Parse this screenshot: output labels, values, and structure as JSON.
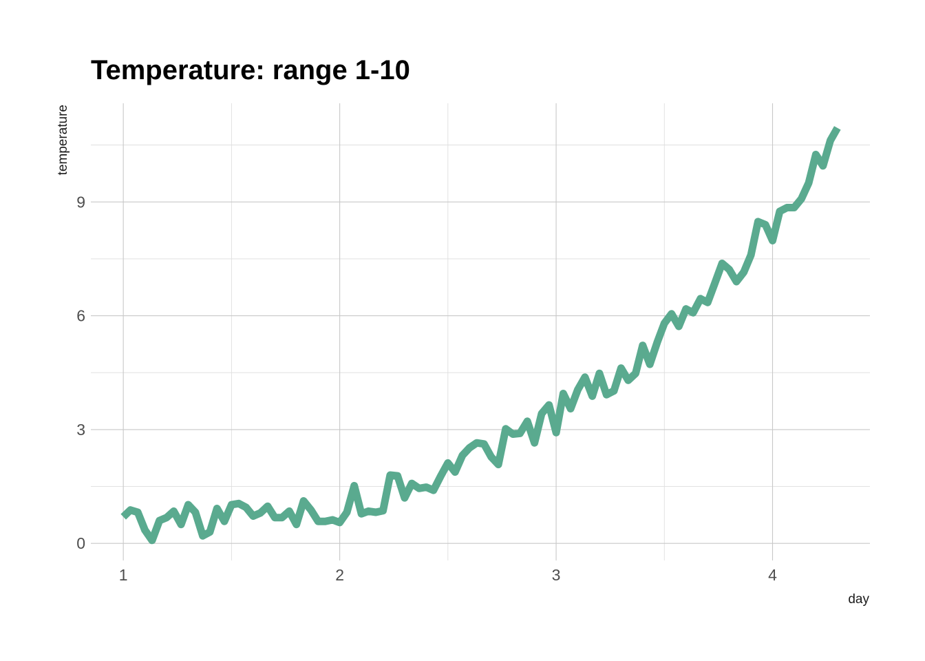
{
  "chart_data": {
    "type": "line",
    "title": "Temperature: range 1-10",
    "xlabel": "day",
    "ylabel": "temperature",
    "xlim": [
      0.85,
      4.45
    ],
    "ylim": [
      -0.45,
      11.6
    ],
    "x_ticks": [
      1,
      2,
      3,
      4
    ],
    "y_ticks": [
      0,
      3,
      6,
      9
    ],
    "x_minor_ticks": [
      1.5,
      2.5,
      3.5
    ],
    "y_minor_ticks": [
      1.5,
      4.5,
      7.5,
      10.5
    ],
    "grid": true,
    "legend": "none",
    "series": [
      {
        "color": "#5aaa8f",
        "x": [
          1.0,
          1.033,
          1.067,
          1.1,
          1.133,
          1.167,
          1.2,
          1.233,
          1.267,
          1.3,
          1.333,
          1.367,
          1.4,
          1.433,
          1.467,
          1.5,
          1.533,
          1.567,
          1.6,
          1.633,
          1.667,
          1.7,
          1.733,
          1.767,
          1.8,
          1.833,
          1.867,
          1.9,
          1.933,
          1.967,
          2.0,
          2.033,
          2.067,
          2.1,
          2.133,
          2.167,
          2.2,
          2.233,
          2.267,
          2.3,
          2.333,
          2.367,
          2.4,
          2.433,
          2.467,
          2.5,
          2.533,
          2.567,
          2.6,
          2.633,
          2.667,
          2.7,
          2.733,
          2.767,
          2.8,
          2.833,
          2.867,
          2.9,
          2.933,
          2.967,
          3.0,
          3.033,
          3.067,
          3.1,
          3.133,
          3.167,
          3.2,
          3.233,
          3.267,
          3.3,
          3.333,
          3.367,
          3.4,
          3.433,
          3.467,
          3.5,
          3.533,
          3.567,
          3.6,
          3.633,
          3.667,
          3.7,
          3.733,
          3.767,
          3.8,
          3.833,
          3.867,
          3.9,
          3.933,
          3.967,
          4.0,
          4.033,
          4.067,
          4.1,
          4.133,
          4.167,
          4.2,
          4.233,
          4.267,
          4.3
        ],
        "values": [
          0.7,
          0.88,
          0.82,
          0.35,
          0.08,
          0.6,
          0.68,
          0.85,
          0.5,
          1.02,
          0.82,
          0.2,
          0.3,
          0.92,
          0.58,
          1.02,
          1.05,
          0.95,
          0.72,
          0.8,
          0.98,
          0.68,
          0.68,
          0.85,
          0.5,
          1.12,
          0.88,
          0.58,
          0.58,
          0.62,
          0.55,
          0.82,
          1.52,
          0.78,
          0.85,
          0.82,
          0.86,
          1.8,
          1.78,
          1.2,
          1.58,
          1.45,
          1.48,
          1.4,
          1.78,
          2.12,
          1.88,
          2.32,
          2.52,
          2.65,
          2.62,
          2.28,
          2.08,
          3.02,
          2.88,
          2.9,
          3.22,
          2.65,
          3.42,
          3.65,
          2.92,
          3.95,
          3.55,
          4.05,
          4.38,
          3.88,
          4.48,
          3.92,
          4.02,
          4.62,
          4.3,
          4.48,
          5.22,
          4.72,
          5.3,
          5.8,
          6.05,
          5.72,
          6.18,
          6.08,
          6.45,
          6.35,
          6.85,
          7.38,
          7.22,
          6.9,
          7.15,
          7.6,
          8.48,
          8.4,
          7.98,
          8.75,
          8.85,
          8.85,
          9.08,
          9.5,
          10.25,
          9.95,
          10.62,
          10.95
        ]
      }
    ]
  }
}
